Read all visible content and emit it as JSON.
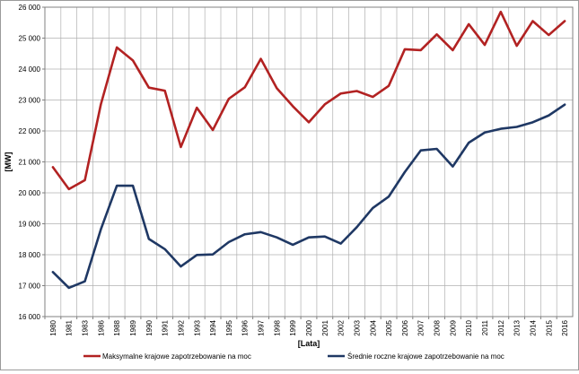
{
  "chart_data": {
    "type": "line",
    "ylabel": "[MW]",
    "xlabel": "[Lata]",
    "ylim": [
      16000,
      26000
    ],
    "yticks": [
      16000,
      17000,
      18000,
      19000,
      20000,
      21000,
      22000,
      23000,
      24000,
      25000,
      26000
    ],
    "ytick_labels": [
      "16 000",
      "17 000",
      "18 000",
      "19 000",
      "20 000",
      "21 000",
      "22 000",
      "23 000",
      "24 000",
      "25 000",
      "26 000"
    ],
    "grid": true,
    "legend_position": "bottom",
    "categories": [
      "1980",
      "1981",
      "1983",
      "1986",
      "1988",
      "1989",
      "1990",
      "1991",
      "1992",
      "1993",
      "1994",
      "1995",
      "1996",
      "1997",
      "1998",
      "1999",
      "2000",
      "2001",
      "2002",
      "2003",
      "2004",
      "2005",
      "2006",
      "2007",
      "2008",
      "2009",
      "2010",
      "2011",
      "2012",
      "2013",
      "2014",
      "2015",
      "2016"
    ],
    "series": [
      {
        "name": "Maksymalne krajowe zapotrzebowanie na moc",
        "color": "#b22222",
        "values": [
          20830,
          20120,
          20410,
          22860,
          24700,
          24280,
          23400,
          23300,
          21480,
          22750,
          22030,
          23040,
          23410,
          24330,
          23380,
          22800,
          22280,
          22860,
          23210,
          23290,
          23100,
          23460,
          24640,
          24610,
          25120,
          24610,
          25450,
          24780,
          25850,
          24750,
          25550,
          25100,
          25550
        ]
      },
      {
        "name": "Średnie roczne krajowe zapotrzebowanie na moc",
        "color": "#1f3864",
        "values": [
          17440,
          16930,
          17140,
          18820,
          20230,
          20230,
          18510,
          18180,
          17620,
          17990,
          18010,
          18410,
          18660,
          18730,
          18560,
          18320,
          18560,
          18590,
          18360,
          18890,
          19510,
          19880,
          20670,
          21370,
          21420,
          20850,
          21620,
          21950,
          22070,
          22130,
          22280,
          22500,
          22850
        ]
      }
    ]
  }
}
